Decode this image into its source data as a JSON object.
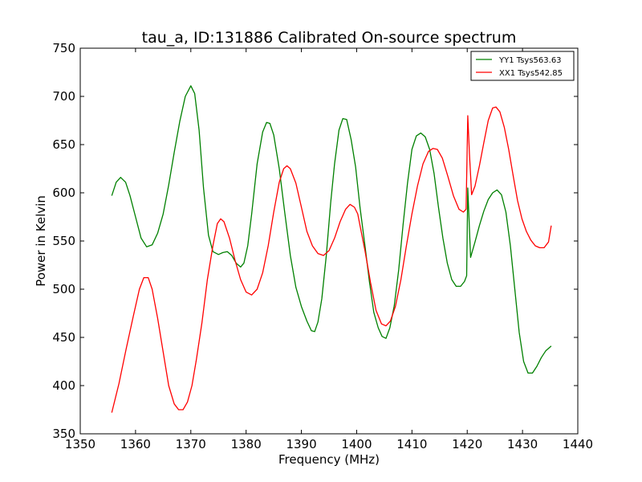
{
  "chart_data": {
    "type": "line",
    "title": "tau_a, ID:131886 Calibrated On-source spectrum",
    "xlabel": "Frequency (MHz)",
    "ylabel": "Power in Kelvin",
    "xlim": [
      1350,
      1440
    ],
    "ylim": [
      350,
      750
    ],
    "xticks": [
      1350,
      1360,
      1370,
      1380,
      1390,
      1400,
      1410,
      1420,
      1430,
      1440
    ],
    "yticks": [
      350,
      400,
      450,
      500,
      550,
      600,
      650,
      700,
      750
    ],
    "grid": false,
    "legend_position": "top-right",
    "series": [
      {
        "name": "YY1 Tsys563.63",
        "color": "#008000",
        "points": [
          [
            1355.7,
            597
          ],
          [
            1356.5,
            611
          ],
          [
            1357.3,
            616
          ],
          [
            1358.2,
            611
          ],
          [
            1359.0,
            597
          ],
          [
            1360.0,
            575
          ],
          [
            1361.0,
            553
          ],
          [
            1362.0,
            544
          ],
          [
            1363.0,
            546
          ],
          [
            1364.0,
            558
          ],
          [
            1365.0,
            578
          ],
          [
            1366.0,
            608
          ],
          [
            1367.0,
            642
          ],
          [
            1368.0,
            674
          ],
          [
            1369.0,
            700
          ],
          [
            1370.0,
            711
          ],
          [
            1370.7,
            703
          ],
          [
            1371.5,
            665
          ],
          [
            1372.3,
            605
          ],
          [
            1373.2,
            556
          ],
          [
            1374.0,
            539
          ],
          [
            1375.0,
            536
          ],
          [
            1375.8,
            538
          ],
          [
            1376.6,
            539
          ],
          [
            1377.4,
            535
          ],
          [
            1378.2,
            527
          ],
          [
            1379.0,
            523
          ],
          [
            1379.6,
            527
          ],
          [
            1380.3,
            545
          ],
          [
            1381.0,
            578
          ],
          [
            1382.0,
            630
          ],
          [
            1383.0,
            663
          ],
          [
            1383.7,
            673
          ],
          [
            1384.3,
            672
          ],
          [
            1385.0,
            660
          ],
          [
            1386.0,
            625
          ],
          [
            1387.0,
            579
          ],
          [
            1388.0,
            535
          ],
          [
            1389.0,
            502
          ],
          [
            1390.0,
            482
          ],
          [
            1391.0,
            467
          ],
          [
            1391.8,
            457
          ],
          [
            1392.4,
            456
          ],
          [
            1393.0,
            466
          ],
          [
            1393.7,
            490
          ],
          [
            1394.5,
            535
          ],
          [
            1395.3,
            590
          ],
          [
            1396.0,
            630
          ],
          [
            1396.8,
            665
          ],
          [
            1397.5,
            677
          ],
          [
            1398.2,
            676
          ],
          [
            1399.0,
            655
          ],
          [
            1399.8,
            627
          ],
          [
            1400.6,
            585
          ],
          [
            1401.5,
            545
          ],
          [
            1402.3,
            508
          ],
          [
            1403.1,
            476
          ],
          [
            1403.9,
            460
          ],
          [
            1404.6,
            451
          ],
          [
            1405.3,
            449
          ],
          [
            1406.0,
            460
          ],
          [
            1406.8,
            483
          ],
          [
            1407.6,
            520
          ],
          [
            1408.4,
            567
          ],
          [
            1409.2,
            610
          ],
          [
            1410.0,
            645
          ],
          [
            1410.8,
            659
          ],
          [
            1411.6,
            662
          ],
          [
            1412.4,
            658
          ],
          [
            1413.2,
            645
          ],
          [
            1414.0,
            620
          ],
          [
            1414.8,
            585
          ],
          [
            1415.6,
            553
          ],
          [
            1416.4,
            527
          ],
          [
            1417.2,
            510
          ],
          [
            1418.0,
            503
          ],
          [
            1418.8,
            503
          ],
          [
            1419.5,
            508
          ],
          [
            1419.9,
            514
          ],
          [
            1420.1,
            605
          ],
          [
            1420.6,
            533
          ],
          [
            1421.4,
            549
          ],
          [
            1422.2,
            566
          ],
          [
            1423.0,
            581
          ],
          [
            1423.8,
            593
          ],
          [
            1424.6,
            600
          ],
          [
            1425.4,
            603
          ],
          [
            1426.2,
            598
          ],
          [
            1427.0,
            580
          ],
          [
            1427.8,
            545
          ],
          [
            1428.6,
            500
          ],
          [
            1429.4,
            455
          ],
          [
            1430.2,
            425
          ],
          [
            1431.0,
            413
          ],
          [
            1431.8,
            413
          ],
          [
            1432.6,
            420
          ],
          [
            1433.4,
            429
          ],
          [
            1434.2,
            436
          ],
          [
            1435.2,
            441
          ]
        ]
      },
      {
        "name": "XX1 Tsys542.85",
        "color": "#ff0000",
        "points": [
          [
            1355.7,
            372
          ],
          [
            1357.0,
            402
          ],
          [
            1358.3,
            438
          ],
          [
            1359.6,
            472
          ],
          [
            1360.7,
            500
          ],
          [
            1361.5,
            512
          ],
          [
            1362.3,
            512
          ],
          [
            1363.0,
            500
          ],
          [
            1364.0,
            470
          ],
          [
            1365.0,
            435
          ],
          [
            1366.0,
            400
          ],
          [
            1367.0,
            381
          ],
          [
            1367.8,
            375
          ],
          [
            1368.6,
            375
          ],
          [
            1369.4,
            383
          ],
          [
            1370.2,
            400
          ],
          [
            1371.0,
            427
          ],
          [
            1372.0,
            465
          ],
          [
            1373.0,
            510
          ],
          [
            1374.0,
            545
          ],
          [
            1374.8,
            568
          ],
          [
            1375.4,
            573
          ],
          [
            1376.0,
            570
          ],
          [
            1377.0,
            553
          ],
          [
            1378.0,
            530
          ],
          [
            1379.0,
            510
          ],
          [
            1380.0,
            497
          ],
          [
            1381.0,
            494
          ],
          [
            1382.0,
            500
          ],
          [
            1383.0,
            517
          ],
          [
            1384.0,
            545
          ],
          [
            1385.0,
            580
          ],
          [
            1386.0,
            611
          ],
          [
            1386.8,
            625
          ],
          [
            1387.4,
            628
          ],
          [
            1388.0,
            625
          ],
          [
            1389.0,
            610
          ],
          [
            1390.0,
            585
          ],
          [
            1391.0,
            560
          ],
          [
            1392.0,
            545
          ],
          [
            1393.0,
            537
          ],
          [
            1394.0,
            535
          ],
          [
            1395.0,
            540
          ],
          [
            1396.0,
            553
          ],
          [
            1397.0,
            570
          ],
          [
            1398.0,
            583
          ],
          [
            1398.8,
            588
          ],
          [
            1399.6,
            585
          ],
          [
            1400.2,
            578
          ],
          [
            1400.6,
            566
          ],
          [
            1401.5,
            540
          ],
          [
            1402.5,
            507
          ],
          [
            1403.5,
            478
          ],
          [
            1404.5,
            464
          ],
          [
            1405.3,
            462
          ],
          [
            1406.1,
            467
          ],
          [
            1407.0,
            482
          ],
          [
            1408.0,
            510
          ],
          [
            1409.0,
            545
          ],
          [
            1410.0,
            578
          ],
          [
            1411.0,
            607
          ],
          [
            1412.0,
            630
          ],
          [
            1413.0,
            643
          ],
          [
            1413.8,
            646
          ],
          [
            1414.6,
            645
          ],
          [
            1415.5,
            636
          ],
          [
            1416.5,
            617
          ],
          [
            1417.5,
            597
          ],
          [
            1418.5,
            583
          ],
          [
            1419.3,
            580
          ],
          [
            1419.8,
            583
          ],
          [
            1420.1,
            680
          ],
          [
            1420.4,
            640
          ],
          [
            1420.8,
            598
          ],
          [
            1421.4,
            607
          ],
          [
            1422.2,
            628
          ],
          [
            1423.0,
            652
          ],
          [
            1423.8,
            675
          ],
          [
            1424.6,
            688
          ],
          [
            1425.2,
            689
          ],
          [
            1425.9,
            684
          ],
          [
            1426.7,
            668
          ],
          [
            1427.5,
            645
          ],
          [
            1428.3,
            618
          ],
          [
            1429.1,
            592
          ],
          [
            1429.9,
            573
          ],
          [
            1430.7,
            560
          ],
          [
            1431.5,
            551
          ],
          [
            1432.3,
            545
          ],
          [
            1433.1,
            543
          ],
          [
            1433.9,
            543
          ],
          [
            1434.7,
            549
          ],
          [
            1435.2,
            566
          ]
        ]
      }
    ]
  }
}
